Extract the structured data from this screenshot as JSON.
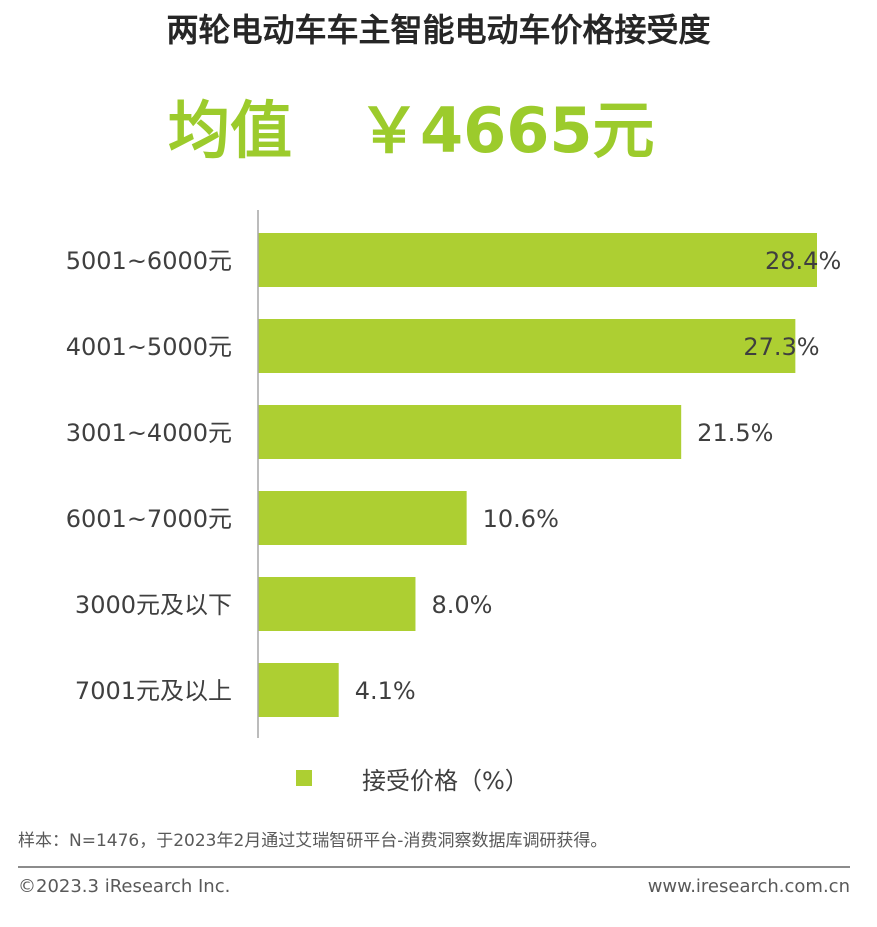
{
  "header": {
    "title": "两轮电动车车主智能电动车价格接受度",
    "mean_label": "均值",
    "mean_value": "￥4665元"
  },
  "chart_data": {
    "type": "bar",
    "orientation": "horizontal",
    "categories": [
      "5001~6000元",
      "4001~5000元",
      "3001~4000元",
      "6001~7000元",
      "3000元及以下",
      "7001元及以上"
    ],
    "series": [
      {
        "name": "接受价格（%）",
        "values": [
          28.4,
          27.3,
          21.5,
          10.6,
          8.0,
          4.1
        ]
      }
    ],
    "value_labels": [
      "28.4%",
      "27.3%",
      "21.5%",
      "10.6%",
      "8.0%",
      "4.1%"
    ],
    "xlim": [
      0,
      28.4
    ],
    "grid": false,
    "legend_position": "bottom",
    "bar_color": "#adcf32",
    "axis_color": "#a6a6a6"
  },
  "legend": {
    "label": "接受价格（%）"
  },
  "footer": {
    "note": "样本：N=1476，于2023年2月通过艾瑞智研平台-消费洞察数据库调研获得。",
    "copyright": "©2023.3 iResearch Inc.",
    "website": "www.iresearch.com.cn"
  }
}
